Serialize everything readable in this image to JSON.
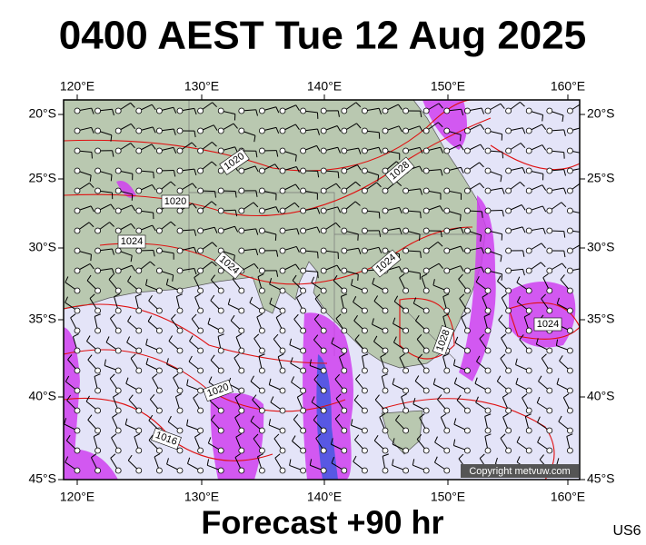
{
  "header": {
    "title": "0400 AEST Tue 12 Aug 2025"
  },
  "map": {
    "longitude_labels": [
      "120°E",
      "130°E",
      "140°E",
      "150°E",
      "160°E"
    ],
    "latitude_labels": [
      "20°S",
      "25°S",
      "30°S",
      "35°S",
      "40°S",
      "45°S"
    ],
    "isobar_labels": [
      "1020",
      "1020",
      "1024",
      "1028",
      "1024",
      "1024",
      "1028",
      "1024",
      "1020",
      "1016"
    ],
    "copyright": "Copyright metvuw.com"
  },
  "footer": {
    "forecast": "Forecast +90 hr",
    "code": "US6"
  }
}
